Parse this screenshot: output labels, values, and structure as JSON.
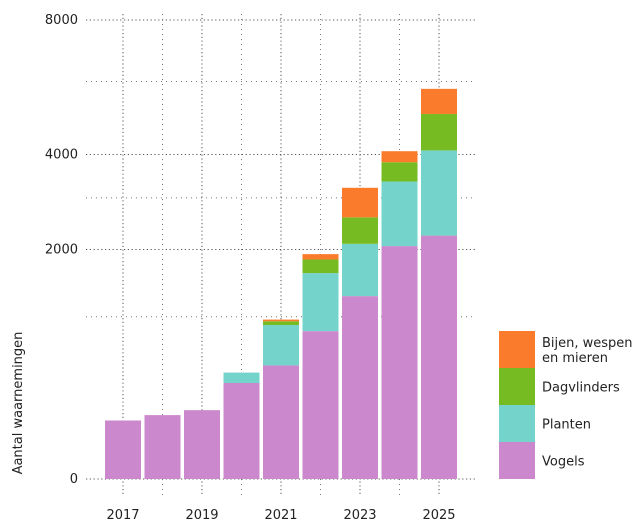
{
  "chart_data": {
    "type": "bar",
    "stacked": true,
    "categories": [
      "2017",
      "2018",
      "2019",
      "2020",
      "2021",
      "2022",
      "2023",
      "2024",
      "2025"
    ],
    "x_tick_labels": [
      "2017",
      "2019",
      "2021",
      "2023",
      "2025"
    ],
    "ylabel": "Aantal waarnemingen",
    "y_ticks": [
      0,
      2000,
      4000,
      8000
    ],
    "y_scale": "sqrt",
    "ylim": [
      0,
      8000
    ],
    "grid": true,
    "legend_position": "right",
    "series": [
      {
        "name": "Vogels",
        "color": "#cc88cc",
        "values": [
          130,
          155,
          180,
          350,
          490,
          830,
          1270,
          2060,
          2250
        ]
      },
      {
        "name": "Planten",
        "color": "#74d4cc",
        "values": [
          0,
          0,
          0,
          80,
          410,
          780,
          830,
          1300,
          1850
        ]
      },
      {
        "name": "Dagvlinders",
        "color": "#77bb22",
        "values": [
          0,
          0,
          0,
          0,
          45,
          220,
          500,
          450,
          960
        ]
      },
      {
        "name": "Bijen, wespen en mieren",
        "legend_lines": [
          "Bijen, wespen",
          "en mieren"
        ],
        "color": "#fb7b2c",
        "values": [
          0,
          0,
          0,
          0,
          20,
          90,
          620,
          270,
          720
        ]
      }
    ]
  }
}
